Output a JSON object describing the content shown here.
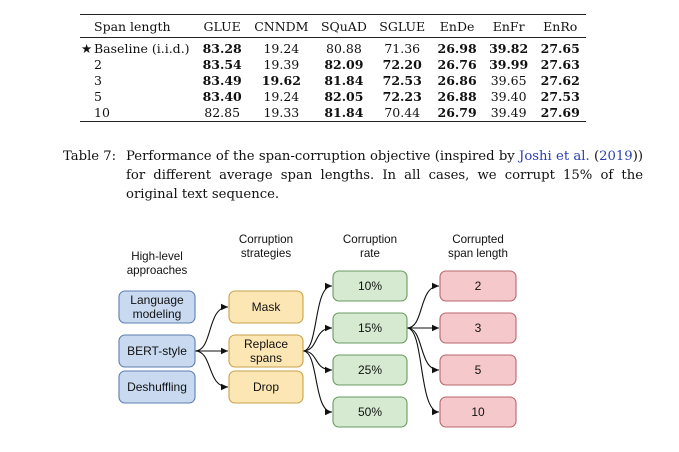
{
  "table": {
    "headers": [
      "Span length",
      "GLUE",
      "CNNDM",
      "SQuAD",
      "SGLUE",
      "EnDe",
      "EnFr",
      "EnRo"
    ],
    "baseline_marker": "★",
    "rows": [
      {
        "label": "Baseline (i.i.d.)",
        "cells": [
          {
            "v": "83.28",
            "b": true
          },
          {
            "v": "19.24",
            "b": false
          },
          {
            "v": "80.88",
            "b": false
          },
          {
            "v": "71.36",
            "b": false
          },
          {
            "v": "26.98",
            "b": true
          },
          {
            "v": "39.82",
            "b": true
          },
          {
            "v": "27.65",
            "b": true
          }
        ]
      },
      {
        "label": "2",
        "cells": [
          {
            "v": "83.54",
            "b": true
          },
          {
            "v": "19.39",
            "b": false
          },
          {
            "v": "82.09",
            "b": true
          },
          {
            "v": "72.20",
            "b": true
          },
          {
            "v": "26.76",
            "b": true
          },
          {
            "v": "39.99",
            "b": true
          },
          {
            "v": "27.63",
            "b": true
          }
        ]
      },
      {
        "label": "3",
        "cells": [
          {
            "v": "83.49",
            "b": true
          },
          {
            "v": "19.62",
            "b": true
          },
          {
            "v": "81.84",
            "b": true
          },
          {
            "v": "72.53",
            "b": true
          },
          {
            "v": "26.86",
            "b": true
          },
          {
            "v": "39.65",
            "b": false
          },
          {
            "v": "27.62",
            "b": true
          }
        ]
      },
      {
        "label": "5",
        "cells": [
          {
            "v": "83.40",
            "b": true
          },
          {
            "v": "19.24",
            "b": false
          },
          {
            "v": "82.05",
            "b": true
          },
          {
            "v": "72.23",
            "b": true
          },
          {
            "v": "26.88",
            "b": true
          },
          {
            "v": "39.40",
            "b": false
          },
          {
            "v": "27.53",
            "b": true
          }
        ]
      },
      {
        "label": "10",
        "cells": [
          {
            "v": "82.85",
            "b": false
          },
          {
            "v": "19.33",
            "b": false
          },
          {
            "v": "81.84",
            "b": true
          },
          {
            "v": "70.44",
            "b": false
          },
          {
            "v": "26.79",
            "b": true
          },
          {
            "v": "39.49",
            "b": false
          },
          {
            "v": "27.69",
            "b": true
          }
        ]
      }
    ]
  },
  "caption": {
    "label": "Table 7:",
    "text_before": "Performance of the span-corruption objective (inspired by ",
    "cite_name": "Joshi et al.",
    "cite_open": " (",
    "cite_year": "2019",
    "cite_close": "))",
    "text_after": " for different average span lengths. In all cases, we corrupt 15% of the original text sequence."
  },
  "diagram": {
    "col_headers": [
      [
        "High-level",
        "approaches"
      ],
      [
        "Corruption",
        "strategies"
      ],
      [
        "Corruption",
        "rate"
      ],
      [
        "Corrupted",
        "span length"
      ]
    ],
    "approaches": [
      [
        "Language",
        "modeling"
      ],
      [
        "BERT-style"
      ],
      [
        "Deshuffling"
      ]
    ],
    "strategies": [
      [
        "Mask"
      ],
      [
        "Replace",
        "spans"
      ],
      [
        "Drop"
      ]
    ],
    "rates": [
      "10%",
      "15%",
      "25%",
      "50%"
    ],
    "span_lengths": [
      "2",
      "3",
      "5",
      "10"
    ],
    "colors": {
      "approach_fill": "#c9daf0",
      "approach_stroke": "#5b7fb0",
      "strategy_fill": "#fce6b4",
      "strategy_stroke": "#c9a24a",
      "rate_fill": "#d5ead0",
      "rate_stroke": "#6a9a60",
      "span_fill": "#f5c8cc",
      "span_stroke": "#b8666e",
      "arrow": "#111111"
    },
    "highlight": {
      "approach": 1,
      "strategy": 1,
      "rate": 1
    }
  }
}
